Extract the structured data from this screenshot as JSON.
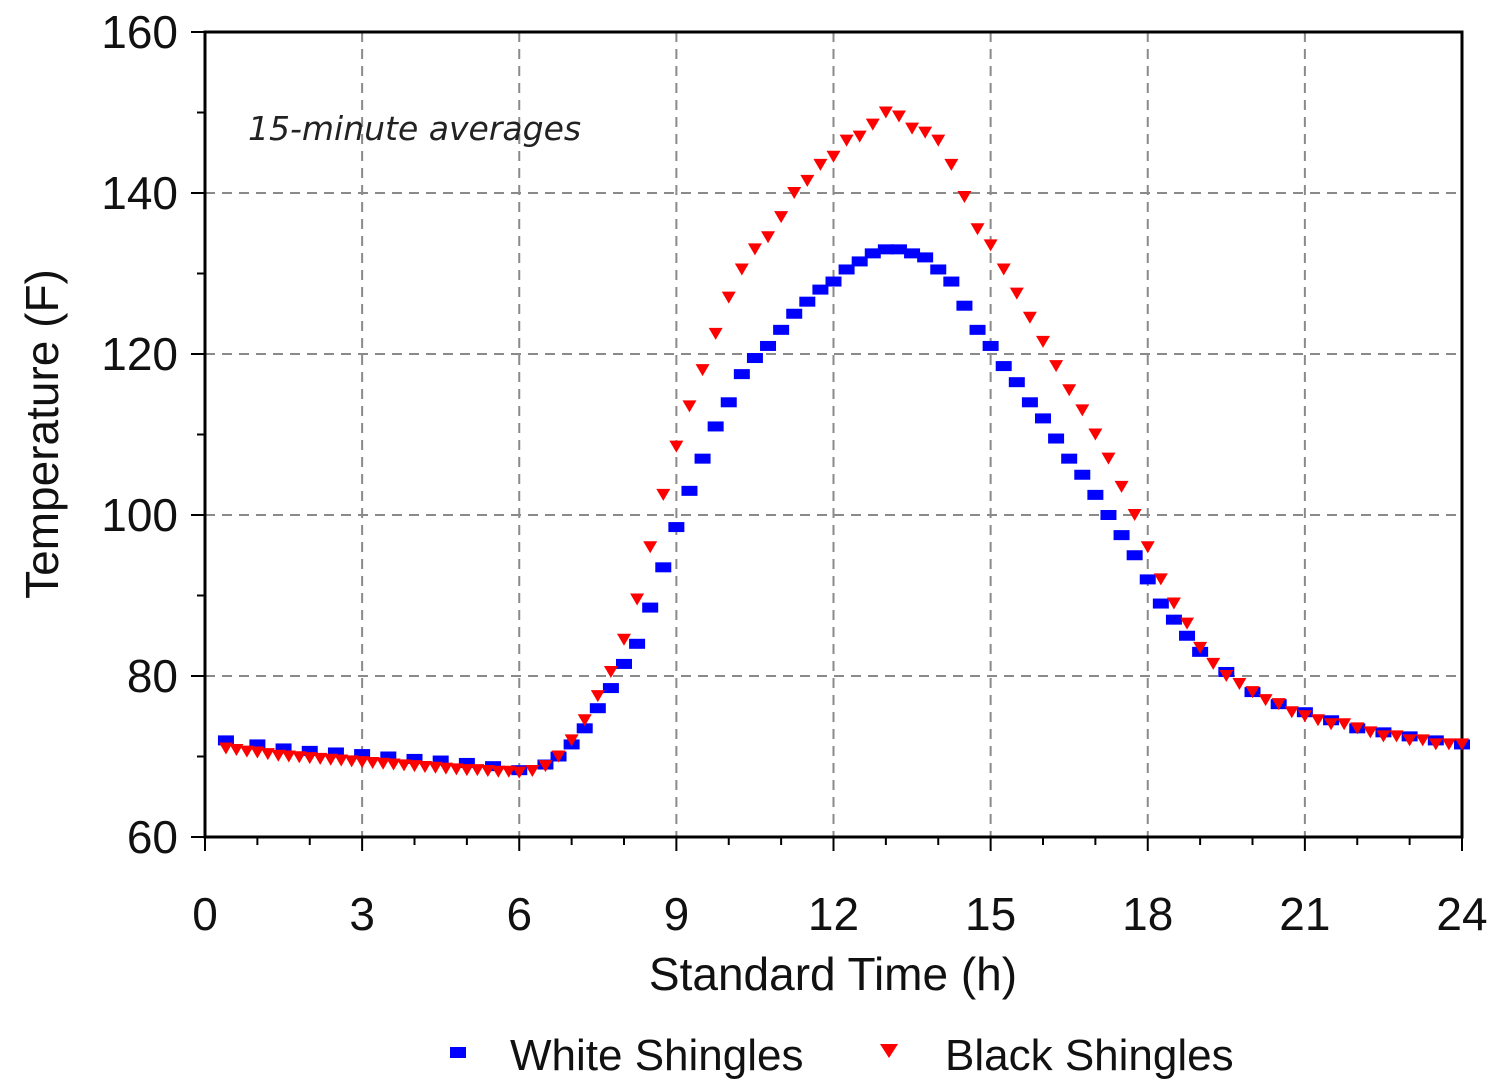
{
  "chart_data": {
    "type": "scatter",
    "title": "",
    "annotation": "15-minute averages",
    "xlabel": "Standard Time (h)",
    "ylabel": "Temperature (F)",
    "xlim": [
      0,
      24
    ],
    "ylim": [
      60,
      160
    ],
    "xticks": [
      0,
      3,
      6,
      9,
      12,
      15,
      18,
      21,
      24
    ],
    "yticks": [
      60,
      80,
      100,
      120,
      140,
      160
    ],
    "grid": true,
    "legend_position": "bottom",
    "series": [
      {
        "name": "White Shingles",
        "marker": "square",
        "color": "#0000ff",
        "x": [
          0.4,
          1.0,
          1.5,
          2.0,
          2.5,
          3.0,
          3.5,
          4.0,
          4.5,
          5.0,
          5.5,
          6.0,
          6.5,
          6.75,
          7.0,
          7.25,
          7.5,
          7.75,
          8.0,
          8.25,
          8.5,
          8.75,
          9.0,
          9.25,
          9.5,
          9.75,
          10.0,
          10.25,
          10.5,
          10.75,
          11.0,
          11.25,
          11.5,
          11.75,
          12.0,
          12.25,
          12.5,
          12.75,
          13.0,
          13.25,
          13.5,
          13.75,
          14.0,
          14.25,
          14.5,
          14.75,
          15.0,
          15.25,
          15.5,
          15.75,
          16.0,
          16.25,
          16.5,
          16.75,
          17.0,
          17.25,
          17.5,
          17.75,
          18.0,
          18.25,
          18.5,
          18.75,
          19.0,
          19.5,
          20.0,
          20.5,
          21.0,
          21.5,
          22.0,
          22.5,
          23.0,
          23.5,
          24.0
        ],
        "y": [
          72,
          71.5,
          71,
          70.7,
          70.5,
          70.3,
          70,
          69.7,
          69.5,
          69.2,
          68.8,
          68.3,
          69,
          70,
          71.5,
          73.5,
          76,
          78.5,
          81.5,
          84,
          88.5,
          93.5,
          98.5,
          103,
          107,
          111,
          114,
          117.5,
          119.5,
          121,
          123,
          125,
          126.5,
          128,
          129,
          130.5,
          131.5,
          132.5,
          133,
          133,
          132.5,
          132,
          130.5,
          129,
          126,
          123,
          121,
          118.5,
          116.5,
          114,
          112,
          109.5,
          107,
          105,
          102.5,
          100,
          97.5,
          95,
          92,
          89,
          87,
          85,
          83,
          80.5,
          78,
          76.5,
          75.5,
          74.5,
          73.5,
          73,
          72.5,
          72,
          71.5
        ]
      },
      {
        "name": "Black Shingles",
        "marker": "triangle-down",
        "color": "#ff0000",
        "x": [
          0.4,
          0.6,
          0.8,
          1.0,
          1.2,
          1.4,
          1.6,
          1.8,
          2.0,
          2.2,
          2.4,
          2.6,
          2.8,
          3.0,
          3.2,
          3.4,
          3.6,
          3.8,
          4.0,
          4.2,
          4.4,
          4.6,
          4.8,
          5.0,
          5.2,
          5.4,
          5.6,
          5.8,
          6.0,
          6.25,
          6.5,
          6.75,
          7.0,
          7.25,
          7.5,
          7.75,
          8.0,
          8.25,
          8.5,
          8.75,
          9.0,
          9.25,
          9.5,
          9.75,
          10.0,
          10.25,
          10.5,
          10.75,
          11.0,
          11.25,
          11.5,
          11.75,
          12.0,
          12.25,
          12.5,
          12.75,
          13.0,
          13.25,
          13.5,
          13.75,
          14.0,
          14.25,
          14.5,
          14.75,
          15.0,
          15.25,
          15.5,
          15.75,
          16.0,
          16.25,
          16.5,
          16.75,
          17.0,
          17.25,
          17.5,
          17.75,
          18.0,
          18.25,
          18.5,
          18.75,
          19.0,
          19.25,
          19.5,
          19.75,
          20.0,
          20.25,
          20.5,
          20.75,
          21.0,
          21.25,
          21.5,
          21.75,
          22.0,
          22.25,
          22.5,
          22.75,
          23.0,
          23.25,
          23.5,
          23.75,
          24.0
        ],
        "y": [
          71,
          70.8,
          70.6,
          70.5,
          70.3,
          70.1,
          70,
          69.9,
          69.8,
          69.7,
          69.6,
          69.5,
          69.4,
          69.3,
          69.2,
          69.1,
          69,
          68.9,
          68.8,
          68.7,
          68.6,
          68.5,
          68.4,
          68.3,
          68.3,
          68.2,
          68.1,
          68.1,
          68,
          68.2,
          68.8,
          70,
          72,
          74.5,
          77.5,
          80.5,
          84.5,
          89.5,
          96,
          102.5,
          108.5,
          113.5,
          118,
          122.5,
          127,
          130.5,
          133,
          134.5,
          137,
          140,
          141.5,
          143.5,
          144.5,
          146.5,
          147,
          148.5,
          150,
          149.5,
          148,
          147.5,
          146.5,
          143.5,
          139.5,
          135.5,
          133.5,
          130.5,
          127.5,
          124.5,
          121.5,
          118.5,
          115.5,
          113,
          110,
          107,
          103.5,
          100,
          96,
          92,
          89,
          86.5,
          83.5,
          81.5,
          80,
          79,
          78,
          77,
          76.5,
          75.5,
          75,
          74.5,
          74,
          74,
          73.5,
          73,
          72.5,
          72.5,
          72,
          72,
          71.5,
          71.5,
          71.5
        ]
      }
    ]
  }
}
